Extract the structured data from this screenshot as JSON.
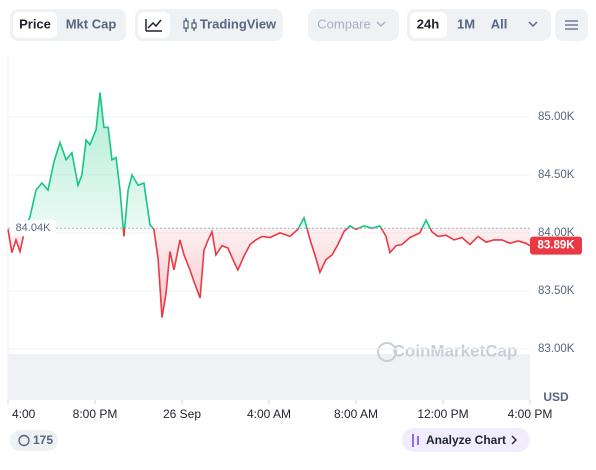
{
  "toolbar": {
    "price": "Price",
    "mkt_cap": "Mkt Cap",
    "tradingview": "TradingView",
    "compare": "Compare",
    "range_24h": "24h",
    "range_1m": "1M",
    "range_all": "All"
  },
  "chart_data": {
    "type": "line",
    "ylabel": "USD",
    "watermark": "CoinMarketCap",
    "x": [
      16.0,
      16.18,
      16.37,
      16.55,
      16.74,
      17.01,
      17.29,
      17.56,
      17.84,
      18.11,
      18.39,
      18.67,
      18.94,
      19.22,
      19.4,
      19.59,
      19.77,
      20.05,
      20.23,
      20.41,
      20.6,
      20.78,
      20.97,
      21.15,
      21.33,
      21.52,
      21.7,
      21.98,
      22.25,
      22.53,
      22.71,
      22.9,
      23.08,
      23.26,
      23.45,
      23.63,
      23.91,
      24.09,
      24.37,
      24.55,
      24.83,
      25.01,
      25.2,
      25.38,
      25.56,
      25.84,
      26.11,
      26.39,
      26.57,
      26.85,
      27.13,
      27.4,
      27.68,
      28.05,
      28.51,
      28.97,
      29.33,
      29.61,
      29.89,
      30.16,
      30.34,
      30.62,
      30.9,
      31.17,
      31.45,
      31.72,
      32.0,
      32.37,
      32.74,
      33.1,
      33.38,
      33.56,
      33.84,
      34.11,
      34.48,
      34.94,
      35.22,
      35.49,
      35.77,
      36.14,
      36.51,
      36.87,
      37.24,
      37.61,
      37.98,
      38.34,
      38.71,
      39.08,
      39.45,
      39.82,
      40.0
    ],
    "series": [
      {
        "name": "Price",
        "color": "#16c784",
        "color_below": "#ea3943",
        "values": [
          84030,
          83830,
          83940,
          83840,
          84000,
          84140,
          84370,
          84430,
          84370,
          84610,
          84780,
          84630,
          84690,
          84410,
          84500,
          84800,
          84760,
          84890,
          85210,
          84910,
          84910,
          84630,
          84650,
          84370,
          83970,
          84370,
          84500,
          84410,
          84430,
          84070,
          84030,
          83780,
          83270,
          83470,
          83840,
          83680,
          83940,
          83810,
          83680,
          83580,
          83440,
          83850,
          83940,
          84010,
          83810,
          83890,
          83870,
          83750,
          83680,
          83800,
          83900,
          83940,
          83970,
          83960,
          84000,
          83970,
          84030,
          84130,
          83940,
          83780,
          83660,
          83770,
          83810,
          83900,
          84010,
          84060,
          84030,
          84060,
          84040,
          84060,
          83970,
          83830,
          83890,
          83900,
          83960,
          84000,
          84110,
          84010,
          83970,
          83980,
          83940,
          83960,
          83900,
          83970,
          83920,
          83940,
          83940,
          83910,
          83930,
          83910,
          83890
        ]
      }
    ],
    "xlim": [
      16,
      40
    ],
    "xticks": [
      {
        "value": 16,
        "label": "4:00"
      },
      {
        "value": 20,
        "label": "8:00 PM"
      },
      {
        "value": 24,
        "label": "26 Sep"
      },
      {
        "value": 28,
        "label": "4:00 AM"
      },
      {
        "value": 32,
        "label": "8:00 AM"
      },
      {
        "value": 36,
        "label": "12:00 PM"
      },
      {
        "value": 40,
        "label": "4:00 PM"
      }
    ],
    "ylim": [
      82560,
      85490
    ],
    "yticks": [
      {
        "value": 83000,
        "label": "83.00K"
      },
      {
        "value": 83500,
        "label": "83.50K"
      },
      {
        "value": 84000,
        "label": "84.00K"
      },
      {
        "value": 84500,
        "label": "84.50K"
      },
      {
        "value": 85000,
        "label": "85.00K"
      }
    ],
    "grid": true,
    "baseline": {
      "value": 84040,
      "label": "84.04K"
    },
    "last_price": {
      "value": 83890,
      "label": "83.89K"
    }
  },
  "footer": {
    "badge": "175",
    "analyze": "Analyze Chart"
  }
}
